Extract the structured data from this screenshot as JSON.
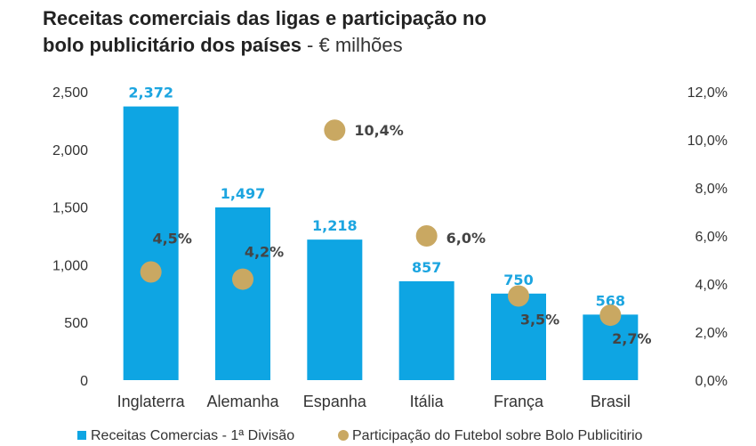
{
  "title_bold": "Receitas comerciais das ligas e participação no bolo publicitário dos países",
  "title_line1": "Receitas comerciais das ligas e participação no",
  "title_line2": "bolo publicitário dos países",
  "title_suffix": " - € milhões",
  "colors": {
    "bar": "#0ea5e3",
    "dot": "#c9a862",
    "bar_label": "#1ca5e0",
    "dot_label": "#444444"
  },
  "chart_data": {
    "type": "bar",
    "categories": [
      "Inglaterra",
      "Alemanha",
      "Espanha",
      "Itália",
      "França",
      "Brasil"
    ],
    "series": [
      {
        "name": "Receitas Comercias - 1ª Divisão",
        "type": "bar",
        "axis": "left",
        "values": [
          2372,
          1497,
          1218,
          857,
          750,
          568
        ],
        "labels": [
          "2,372",
          "1,497",
          "1,218",
          "857",
          "750",
          "568"
        ]
      },
      {
        "name": "Participação do Futebol sobre Bolo Publicitirio",
        "type": "scatter",
        "axis": "right",
        "values": [
          4.5,
          4.2,
          10.4,
          6.0,
          3.5,
          2.7
        ],
        "labels": [
          "4,5%",
          "4,2%",
          "10,4%",
          "6,0%",
          "3,5%",
          "2,7%"
        ]
      }
    ],
    "y_left": {
      "ylim": [
        0,
        2500
      ],
      "ticks": [
        "0",
        "500",
        "1,000",
        "1,500",
        "2,000",
        "2,500"
      ]
    },
    "y_right": {
      "ylim": [
        0,
        12
      ],
      "ticks": [
        "0,0%",
        "2,0%",
        "4,0%",
        "6,0%",
        "8,0%",
        "10,0%",
        "12,0%"
      ]
    },
    "grid": false,
    "legend": "bottom"
  }
}
